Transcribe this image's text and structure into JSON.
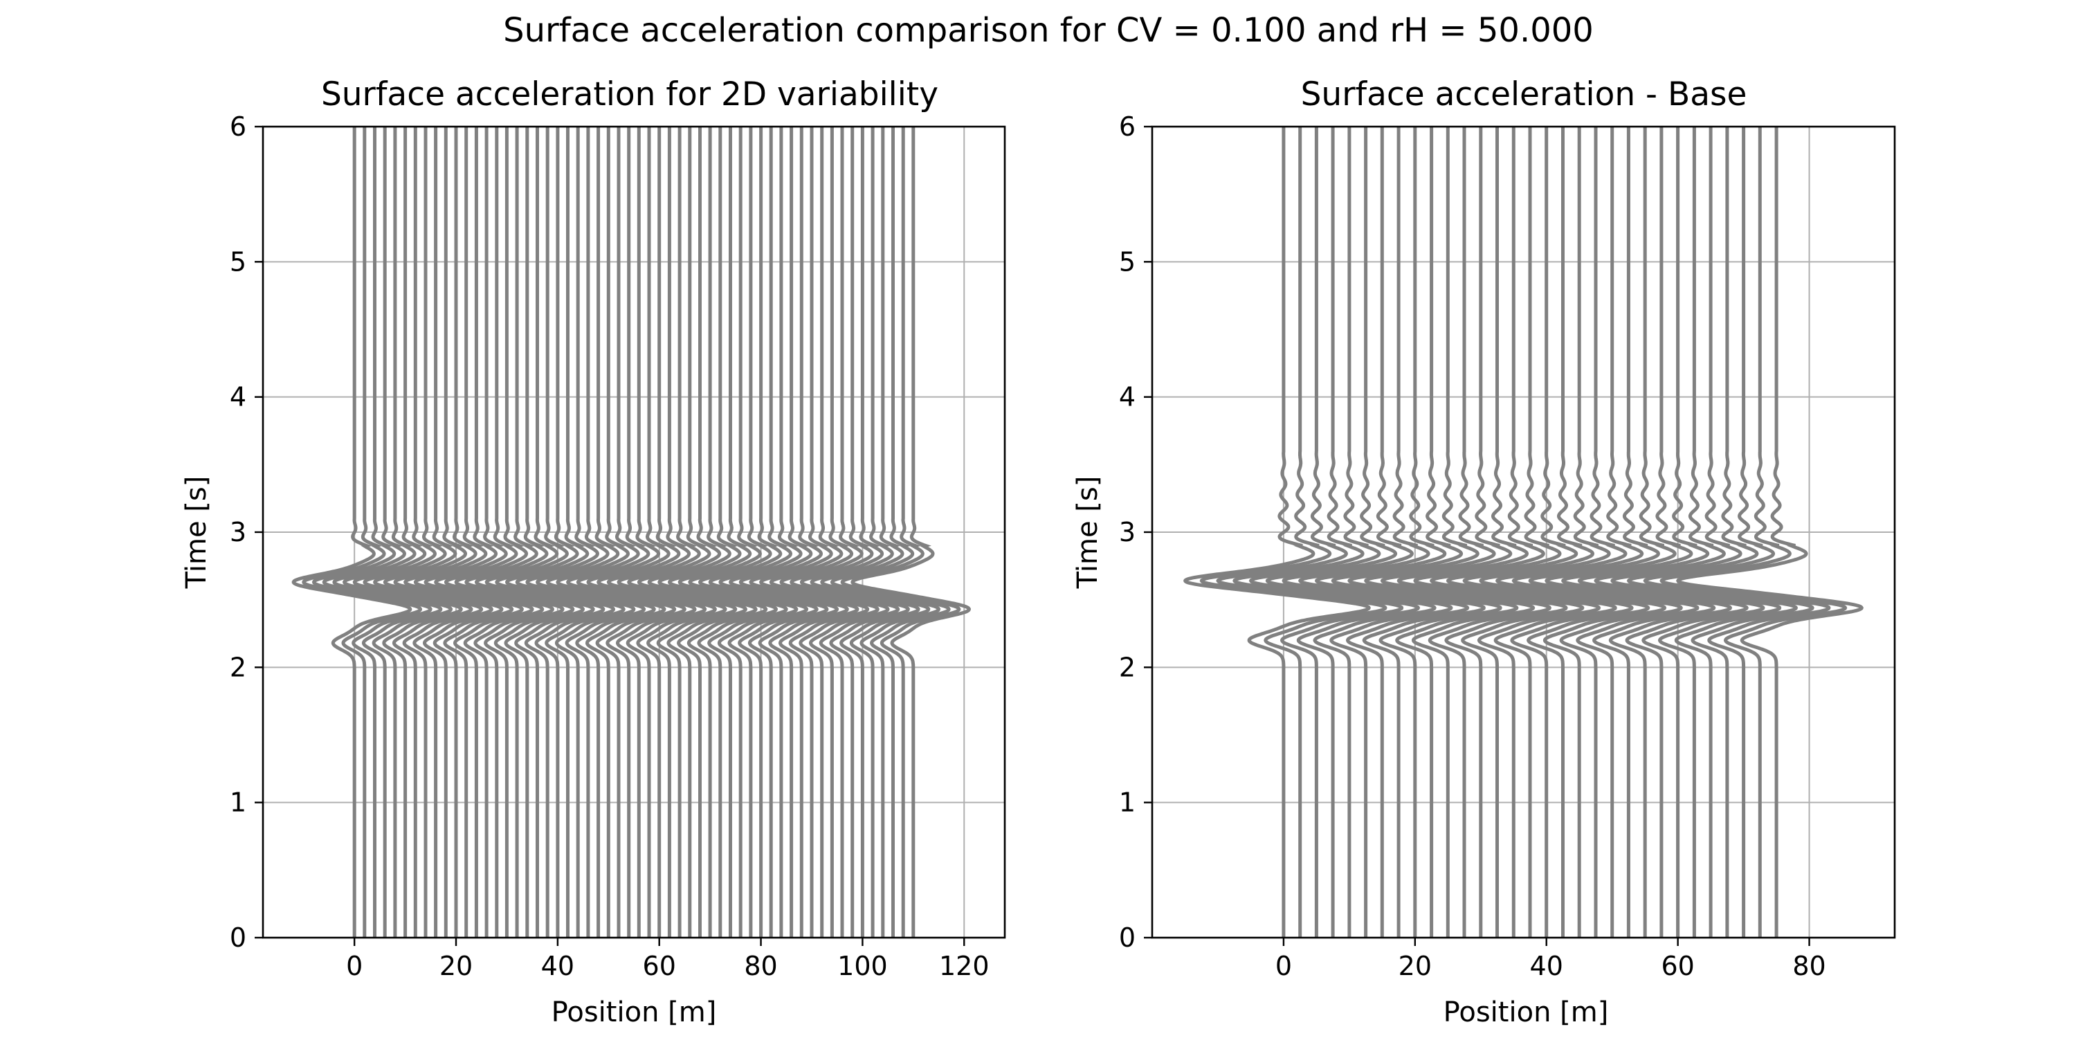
{
  "figure": {
    "suptitle": "Surface acceleration comparison for CV = 0.100 and rH = 50.000"
  },
  "colors": {
    "trace": "#808080",
    "grid": "#b0b0b0",
    "axes": "#000000",
    "background": "#ffffff"
  },
  "chart_data": [
    {
      "type": "line",
      "title": "Surface acceleration for 2D variability",
      "xlabel": "Position [m]",
      "ylabel": "Time [s]",
      "xlim": [
        -18,
        128
      ],
      "ylim": [
        0,
        6
      ],
      "xticks": [
        0,
        20,
        40,
        60,
        80,
        100,
        120
      ],
      "yticks": [
        0,
        1,
        2,
        3,
        4,
        5,
        6
      ],
      "grid": true,
      "legend": "none",
      "trace_positions_start": 0,
      "trace_positions_step": 2,
      "trace_count": 56,
      "pulse": {
        "onset_time": 2.0,
        "trough_min_x": -12,
        "trough_time": 2.63,
        "peak_max_x": 121,
        "peak_time": 2.43,
        "small_lobe_time": 2.18,
        "late_lobe_time": 2.84,
        "coda_end_time": 3.1
      }
    },
    {
      "type": "line",
      "title": "Surface acceleration - Base",
      "xlabel": "Position [m]",
      "ylabel": "Time [s]",
      "xlim": [
        -20,
        93
      ],
      "ylim": [
        0,
        6
      ],
      "xticks": [
        0,
        20,
        40,
        60,
        80
      ],
      "yticks": [
        0,
        1,
        2,
        3,
        4,
        5,
        6
      ],
      "grid": true,
      "legend": "none",
      "trace_positions_start": 0,
      "trace_positions_step": 2.5,
      "trace_count": 31,
      "pulse": {
        "onset_time": 2.0,
        "trough_min_x": -15,
        "trough_time": 2.64,
        "peak_max_x": 88,
        "peak_time": 2.44,
        "small_lobe_time": 2.2,
        "late_lobe_time": 2.84,
        "coda_end_time": 3.6
      }
    }
  ]
}
